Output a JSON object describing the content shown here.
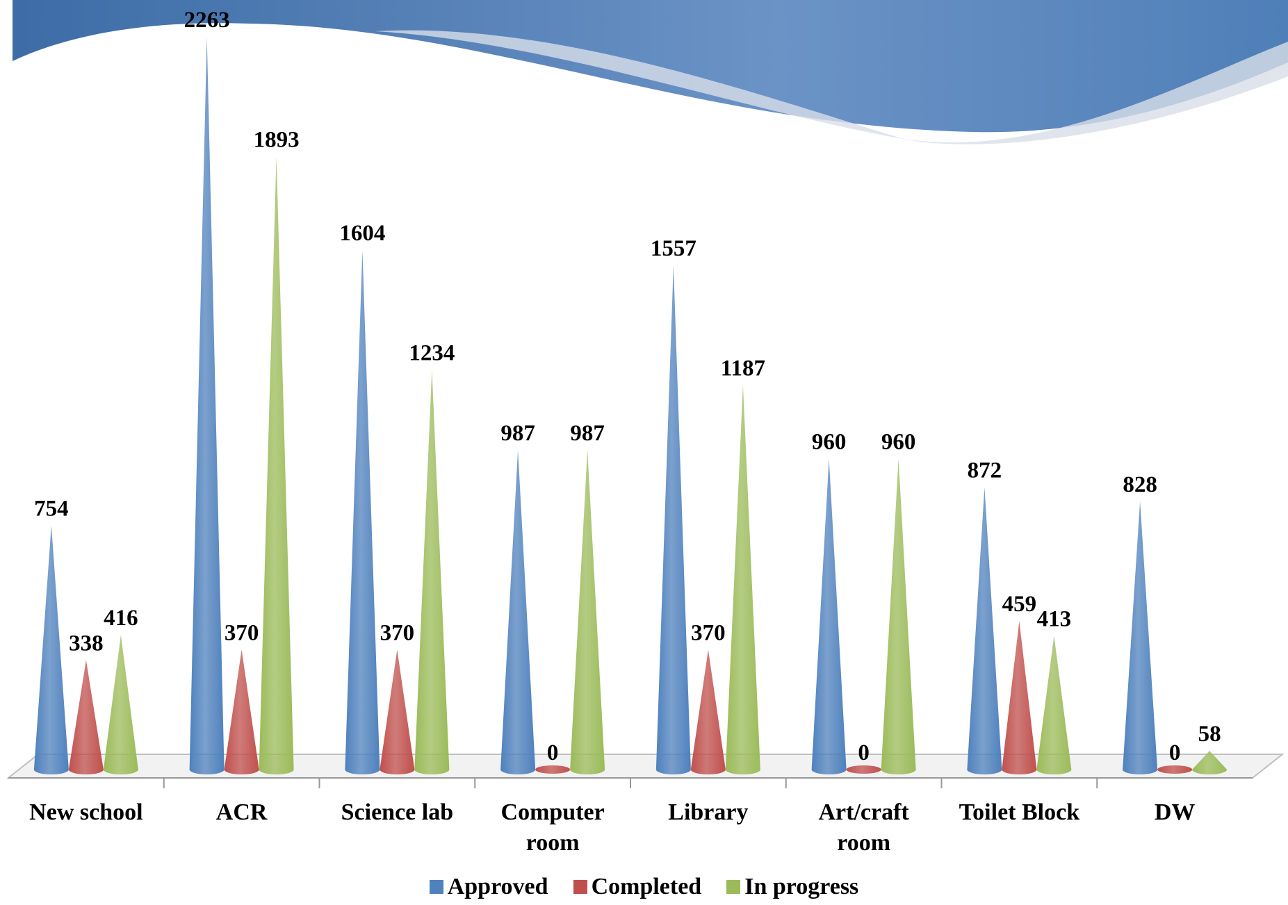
{
  "chart_data": {
    "type": "cone",
    "categories": [
      "New school",
      "ACR",
      "Science lab",
      "Computer room",
      "Library",
      "Art/craft room",
      "Toilet Block",
      "DW"
    ],
    "series": [
      {
        "name": "Approved",
        "color": "#4f81bd",
        "values": [
          754,
          2263,
          1604,
          987,
          1557,
          960,
          872,
          828
        ]
      },
      {
        "name": "Completed",
        "color": "#c0504d",
        "values": [
          338,
          370,
          370,
          0,
          370,
          0,
          459,
          0
        ]
      },
      {
        "name": "In progress",
        "color": "#9bbb59",
        "values": [
          416,
          1893,
          1234,
          987,
          1187,
          960,
          413,
          58
        ]
      }
    ]
  }
}
